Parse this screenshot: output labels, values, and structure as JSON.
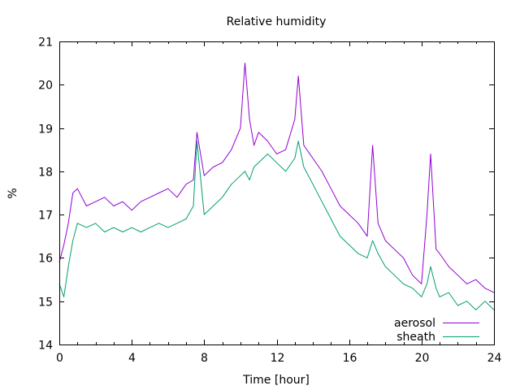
{
  "chart_data": {
    "type": "line",
    "title": "Relative humidity",
    "xlabel": "Time [hour]",
    "ylabel": "%",
    "xlim": [
      0,
      24
    ],
    "ylim": [
      14,
      21
    ],
    "xticks": [
      0,
      4,
      8,
      12,
      16,
      20,
      24
    ],
    "xtick_labels": [
      "0",
      "4",
      "8",
      "12",
      "16",
      "20",
      "24"
    ],
    "xminor_step": 1,
    "yticks": [
      14,
      15,
      16,
      17,
      18,
      19,
      20,
      21
    ],
    "ytick_labels": [
      "14",
      "15",
      "16",
      "17",
      "18",
      "19",
      "20",
      "21"
    ],
    "grid": false,
    "legend_position": "bottom-right",
    "x": [
      0,
      0.25,
      0.5,
      0.75,
      1,
      1.5,
      2,
      2.5,
      3,
      3.5,
      4,
      4.5,
      5,
      5.5,
      6,
      6.5,
      7,
      7.4,
      7.6,
      8,
      8.5,
      9,
      9.5,
      10,
      10.25,
      10.5,
      10.75,
      11,
      11.5,
      12,
      12.5,
      13,
      13.2,
      13.5,
      14,
      14.5,
      15,
      15.5,
      16,
      16.5,
      17,
      17.3,
      17.6,
      18,
      18.5,
      19,
      19.5,
      20,
      20.3,
      20.5,
      20.8,
      21,
      21.5,
      22,
      22.5,
      23,
      23.5,
      24
    ],
    "series": [
      {
        "name": "aerosol",
        "color": "#9400d3",
        "values": [
          15.9,
          16.3,
          16.8,
          17.5,
          17.6,
          17.2,
          17.3,
          17.4,
          17.2,
          17.3,
          17.1,
          17.3,
          17.4,
          17.5,
          17.6,
          17.4,
          17.7,
          17.8,
          18.9,
          17.9,
          18.1,
          18.2,
          18.5,
          19.0,
          20.5,
          19.2,
          18.6,
          18.9,
          18.7,
          18.4,
          18.5,
          19.2,
          20.2,
          18.6,
          18.3,
          18.0,
          17.6,
          17.2,
          17.0,
          16.8,
          16.5,
          18.6,
          16.8,
          16.4,
          16.2,
          16.0,
          15.6,
          15.4,
          17.0,
          18.4,
          16.2,
          16.1,
          15.8,
          15.6,
          15.4,
          15.5,
          15.3,
          15.2
        ]
      },
      {
        "name": "sheath",
        "color": "#009e73",
        "values": [
          15.4,
          15.1,
          15.8,
          16.4,
          16.8,
          16.7,
          16.8,
          16.6,
          16.7,
          16.6,
          16.7,
          16.6,
          16.7,
          16.8,
          16.7,
          16.8,
          16.9,
          17.2,
          18.7,
          17.0,
          17.2,
          17.4,
          17.7,
          17.9,
          18.0,
          17.8,
          18.1,
          18.2,
          18.4,
          18.2,
          18.0,
          18.3,
          18.7,
          18.1,
          17.7,
          17.3,
          16.9,
          16.5,
          16.3,
          16.1,
          16.0,
          16.4,
          16.1,
          15.8,
          15.6,
          15.4,
          15.3,
          15.1,
          15.4,
          15.8,
          15.3,
          15.1,
          15.2,
          14.9,
          15.0,
          14.8,
          15.0,
          14.8
        ]
      }
    ]
  }
}
